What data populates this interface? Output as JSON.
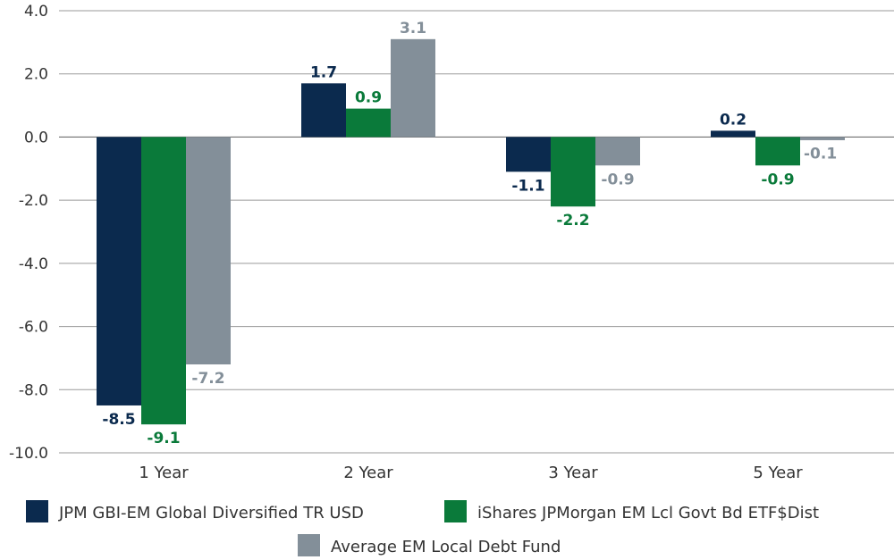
{
  "chart_data": {
    "type": "bar",
    "categories": [
      "1 Year",
      "2 Year",
      "3 Year",
      "5 Year"
    ],
    "series": [
      {
        "name": "JPM GBI-EM Global Diversified TR USD",
        "values": [
          -8.5,
          1.7,
          -1.1,
          0.2
        ],
        "labels": [
          "-8.5",
          "1.7",
          "-1.1",
          "0.2"
        ],
        "color": "#0b2a4e"
      },
      {
        "name": "iShares JPMorgan EM Lcl Govt Bd ETF$Dist",
        "values": [
          -9.1,
          0.9,
          -2.2,
          -0.9
        ],
        "labels": [
          "-9.1",
          "0.9",
          "-2.2",
          "-0.9"
        ],
        "color": "#0a7a3a"
      },
      {
        "name": "Average EM Local Debt Fund",
        "values": [
          -7.2,
          3.1,
          -0.9,
          -0.1
        ],
        "labels": [
          "-7.2",
          "3.1",
          "-0.9",
          "-0.1"
        ],
        "color": "#838f99"
      }
    ],
    "ylim": [
      -10.0,
      4.0
    ],
    "yticks": [
      "4.0",
      "2.0",
      "0.0",
      "-2.0",
      "-4.0",
      "-6.0",
      "-8.0",
      "-10.0"
    ],
    "ytick_values": [
      4,
      2,
      0,
      -2,
      -4,
      -6,
      -8,
      -10
    ],
    "grid": true,
    "legend_position": "bottom",
    "title": "",
    "xlabel": "",
    "ylabel": ""
  }
}
